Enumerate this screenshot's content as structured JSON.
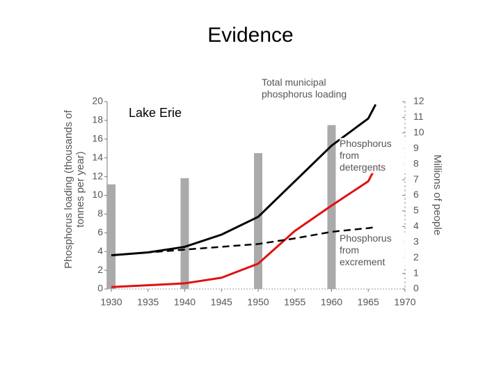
{
  "chart_data": {
    "type": "line",
    "title": "Evidence",
    "annotation": "Lake Erie",
    "ylabel": "Phosphorus loading (thousands of tonnes per year)",
    "y2label": "Millions of people",
    "x": [
      1930,
      1935,
      1940,
      1945,
      1950,
      1955,
      1960,
      1965,
      1966
    ],
    "xlim": [
      1930,
      1970
    ],
    "xticks": [
      1930,
      1935,
      1940,
      1945,
      1950,
      1955,
      1960,
      1965,
      1970
    ],
    "ylim": [
      0,
      20
    ],
    "yticks": [
      0,
      2,
      4,
      6,
      8,
      10,
      12,
      14,
      16,
      18,
      20
    ],
    "y2lim": [
      0,
      12
    ],
    "y2ticks": [
      0,
      1,
      2,
      3,
      4,
      5,
      6,
      7,
      8,
      9,
      10,
      11,
      12
    ],
    "series": [
      {
        "name": "Total municipal phosphorus loading",
        "color": "#000000",
        "dashed": false,
        "values": [
          3.6,
          3.9,
          4.5,
          5.8,
          7.7,
          11.5,
          15.3,
          18.2,
          19.7
        ]
      },
      {
        "name": "Phosphorus from detergents",
        "color": "#e01010",
        "dashed": false,
        "values": [
          0.2,
          0.4,
          0.6,
          1.2,
          2.7,
          6.2,
          8.9,
          11.5,
          13.0
        ]
      },
      {
        "name": "Phosphorus from excrement",
        "color": "#000000",
        "dashed": true,
        "values": [
          3.6,
          3.9,
          4.2,
          4.5,
          4.8,
          5.4,
          6.1,
          6.5,
          6.6
        ]
      },
      {
        "type": "bar",
        "axis": "y2",
        "color": "#aaaaaa",
        "x": [
          1930,
          1940,
          1950,
          1960
        ],
        "values": [
          6.7,
          7.1,
          8.7,
          10.5
        ]
      }
    ]
  }
}
